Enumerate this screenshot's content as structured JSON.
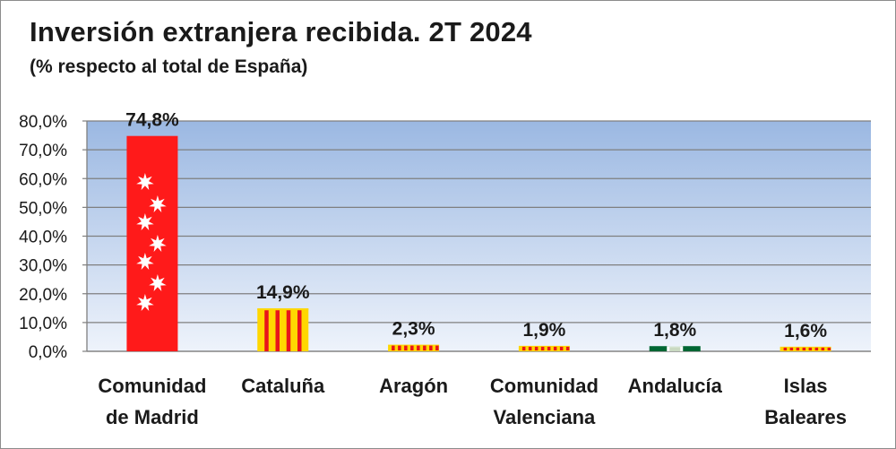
{
  "chart_data": {
    "type": "bar",
    "title": "Inversión extranjera recibida. 2T 2024",
    "subtitle": "(% respecto al total de España)",
    "categories": [
      [
        "Comunidad",
        "de Madrid"
      ],
      [
        "Cataluña"
      ],
      [
        "Aragón"
      ],
      [
        "Comunidad",
        "Valenciana"
      ],
      [
        "Andalucía"
      ],
      [
        "Islas",
        "Baleares"
      ]
    ],
    "values": [
      74.8,
      14.9,
      2.3,
      1.9,
      1.8,
      1.6
    ],
    "value_labels": [
      "74,8%",
      "14,9%",
      "2,3%",
      "1,9%",
      "1,8%",
      "1,6%"
    ],
    "bar_fill": [
      "madrid-flag",
      "cataluna-flag",
      "aragon-flag",
      "valencia-flag",
      "andalucia-flag",
      "baleares-flag"
    ],
    "ylim": [
      0,
      80
    ],
    "y_ticks": [
      "0,0%",
      "10,0%",
      "20,0%",
      "30,0%",
      "40,0%",
      "50,0%",
      "60,0%",
      "70,0%",
      "80,0%"
    ],
    "grid": true,
    "plot_background": "gradient",
    "colors": {
      "plot_top": "#9bb8e2",
      "plot_bottom": "#eef3fb",
      "grid": "#7f7f7f",
      "madrid_red": "#ff1a1a",
      "flag_red": "#e8141b",
      "flag_yellow": "#ffd700",
      "andalucia_green": "#006633"
    }
  }
}
